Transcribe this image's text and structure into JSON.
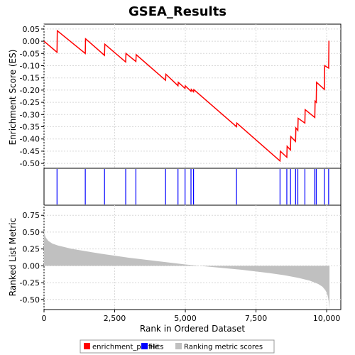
{
  "chart_data": {
    "type": "line",
    "title": "GSEA_Results",
    "xlabel": "Rank in Ordered Dataset",
    "xlim": [
      0,
      10500
    ],
    "x_ticks": [
      0,
      2500,
      5000,
      7500,
      10000
    ],
    "x_tick_labels": [
      "0",
      "2,500",
      "5,000",
      "7,500",
      "10,000"
    ],
    "panels": {
      "enrichment": {
        "ylabel": "Enrichment Score (ES)",
        "ylim": [
          -0.52,
          0.07
        ],
        "y_ticks": [
          0.05,
          0.0,
          -0.05,
          -0.1,
          -0.15,
          -0.2,
          -0.25,
          -0.3,
          -0.35,
          -0.4,
          -0.45,
          -0.5
        ],
        "y_tick_labels": [
          "0.05",
          "0.00",
          "-0.05",
          "-0.10",
          "-0.15",
          "-0.20",
          "-0.25",
          "-0.30",
          "-0.35",
          "-0.40",
          "-0.45",
          "-0.50"
        ],
        "grid": true,
        "color": "#ff0000"
      },
      "hits": {
        "color": "#0000ff"
      },
      "ranking": {
        "ylabel": "Ranked List Metric",
        "ylim": [
          -0.65,
          0.9
        ],
        "y_ticks": [
          0.75,
          0.5,
          0.25,
          0.0,
          -0.25,
          -0.5
        ],
        "y_tick_labels": [
          "0.75",
          "0.50",
          "0.25",
          "0.00",
          "-0.25",
          "-0.50"
        ],
        "grid": true,
        "color": "#c0c0c0"
      }
    },
    "series": [
      {
        "name": "enrichment_profile",
        "x": [
          0,
          460,
          470,
          1460,
          1470,
          2140,
          2150,
          2890,
          2900,
          3250,
          3260,
          4300,
          4310,
          4740,
          4750,
          4990,
          5000,
          5200,
          5210,
          5290,
          5300,
          6810,
          6820,
          8350,
          8360,
          8590,
          8600,
          8720,
          8730,
          8900,
          8910,
          8980,
          8990,
          9230,
          9240,
          9580,
          9590,
          9630,
          9640,
          9920,
          9930,
          10070,
          10080
        ],
        "y": [
          0.0,
          -0.045,
          0.043,
          -0.05,
          0.01,
          -0.058,
          -0.012,
          -0.085,
          -0.05,
          -0.083,
          -0.055,
          -0.16,
          -0.135,
          -0.182,
          -0.168,
          -0.193,
          -0.183,
          -0.205,
          -0.197,
          -0.207,
          -0.198,
          -0.35,
          -0.335,
          -0.49,
          -0.45,
          -0.475,
          -0.43,
          -0.445,
          -0.39,
          -0.41,
          -0.355,
          -0.365,
          -0.315,
          -0.335,
          -0.28,
          -0.312,
          -0.245,
          -0.25,
          -0.168,
          -0.197,
          -0.1,
          -0.11,
          0.002
        ]
      },
      {
        "name": "Hits",
        "x": [
          460,
          1460,
          2140,
          2890,
          3250,
          4300,
          4740,
          4990,
          5200,
          5290,
          6810,
          8350,
          8590,
          8720,
          8900,
          8980,
          9230,
          9580,
          9630,
          9920,
          10070
        ]
      },
      {
        "name": "Ranking metric scores",
        "x": [
          0,
          20,
          60,
          150,
          300,
          500,
          1000,
          2000,
          3000,
          4000,
          5000,
          5500,
          6000,
          7000,
          8000,
          8500,
          9000,
          9400,
          9700,
          9850,
          9950,
          10000,
          10040,
          10070,
          10090,
          10100
        ],
        "y": [
          0.53,
          0.47,
          0.42,
          0.37,
          0.33,
          0.3,
          0.25,
          0.18,
          0.12,
          0.07,
          0.02,
          0.0,
          -0.02,
          -0.06,
          -0.11,
          -0.14,
          -0.18,
          -0.22,
          -0.27,
          -0.31,
          -0.36,
          -0.4,
          -0.45,
          -0.52,
          -0.6,
          -0.64
        ]
      }
    ],
    "legend": {
      "position": "bottom",
      "entries": [
        {
          "label": "enrichment_profile",
          "color": "#ff0000"
        },
        {
          "label": "Hits",
          "color": "#0000ff"
        },
        {
          "label": "Ranking metric scores",
          "color": "#c0c0c0"
        }
      ]
    }
  }
}
